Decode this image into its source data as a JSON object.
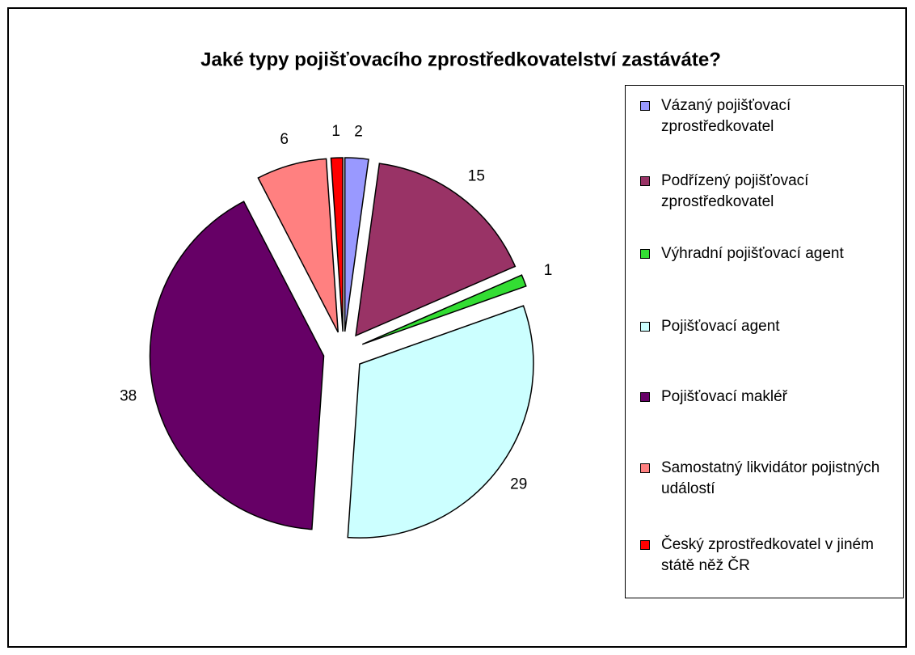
{
  "chart_data": {
    "type": "pie",
    "title": "Jaké typy pojišťovacího zprostředkovatelství zastáváte?",
    "categories": [
      "Vázaný pojišťovací zprostředkovatel",
      "Podřízený pojišťovací zprostředkovatel",
      "Výhradní pojišťovací agent",
      "Pojišťovací agent",
      "Pojišťovací makléř",
      "Samostatný likvidátor pojistných událostí",
      "Český zprostředkovatel v jiném státě něž ČR"
    ],
    "values": [
      2,
      15,
      1,
      29,
      38,
      6,
      1
    ],
    "colors": [
      "#9999ff",
      "#993366",
      "#33dd33",
      "#ccffff",
      "#660066",
      "#ff8080",
      "#ff0000"
    ],
    "legend": "right"
  }
}
